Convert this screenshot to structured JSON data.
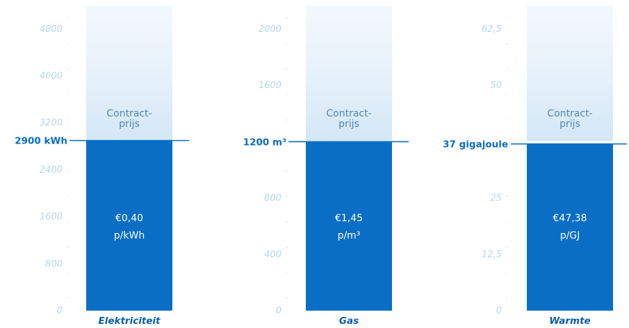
{
  "chart_data": {
    "type": "bar",
    "charts": [
      {
        "category": "Elektriciteit",
        "ticks": [
          "0",
          "800",
          "1600",
          "2400",
          "3200",
          "4000",
          "4800"
        ],
        "tick_values": [
          0,
          800,
          1600,
          2400,
          3200,
          4000,
          4800
        ],
        "ylim": [
          0,
          5200
        ],
        "value": 2900,
        "value_label": "2900 kWh",
        "contract_label": [
          "Contract-",
          "prijs"
        ],
        "price_label": [
          "€0,40",
          "p/kWh"
        ]
      },
      {
        "category": "Gas",
        "ticks": [
          "0",
          "400",
          "800",
          "1600",
          "2000"
        ],
        "tick_values": [
          0,
          400,
          800,
          1600,
          2000
        ],
        "ylim": [
          0,
          2167
        ],
        "value": 1200,
        "value_label": "1200 m³",
        "contract_label": [
          "Contract-",
          "prijs"
        ],
        "price_label": [
          "€1,45",
          "p/m³"
        ]
      },
      {
        "category": "Warmte",
        "ticks": [
          "0",
          "12,5",
          "25",
          "50",
          "62,5"
        ],
        "tick_values": [
          0,
          12.5,
          25,
          50,
          62.5
        ],
        "ylim": [
          0,
          67.7
        ],
        "value": 37,
        "value_label": "37 gigajoule",
        "contract_label": [
          "Contract-",
          "prijs"
        ],
        "price_label": [
          "€47,38",
          "p/GJ"
        ]
      }
    ]
  },
  "colors": {
    "bar": "#0a6ec4",
    "bar_light_top": "#eaf3fb",
    "bar_light_bottom": "#d3e7f6",
    "tick_text": "#b6d6ee",
    "threshold_text": "#0a6ec4",
    "category_text": "#0a5ea8"
  }
}
